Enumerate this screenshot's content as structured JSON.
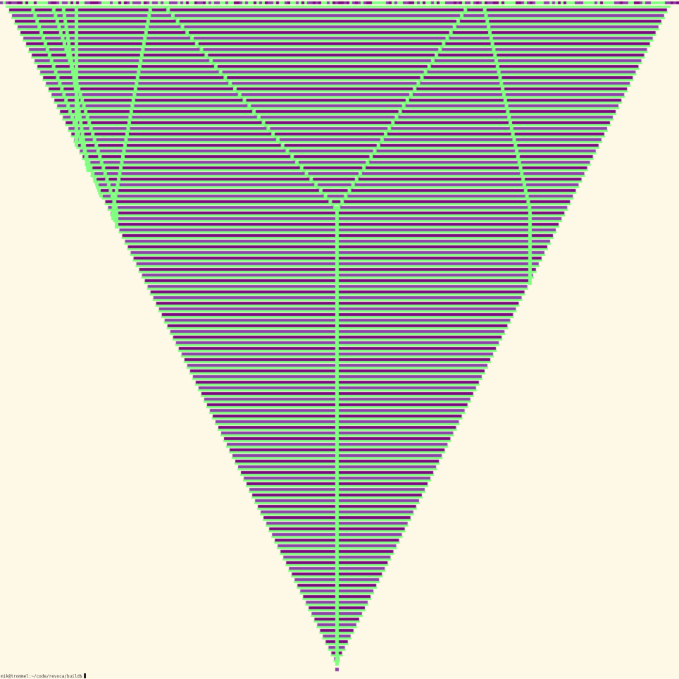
{
  "terminal": {
    "prompt": "mik@trommel:~/code/revoca/build$",
    "cursor_icon": "block-cursor-icon"
  },
  "automaton": {
    "cell_colors": {
      "background": "#fef8e6",
      "state_1": "#80ff80",
      "state_2": "#8c42a8",
      "state_3": "#7a0a7e"
    }
  }
}
